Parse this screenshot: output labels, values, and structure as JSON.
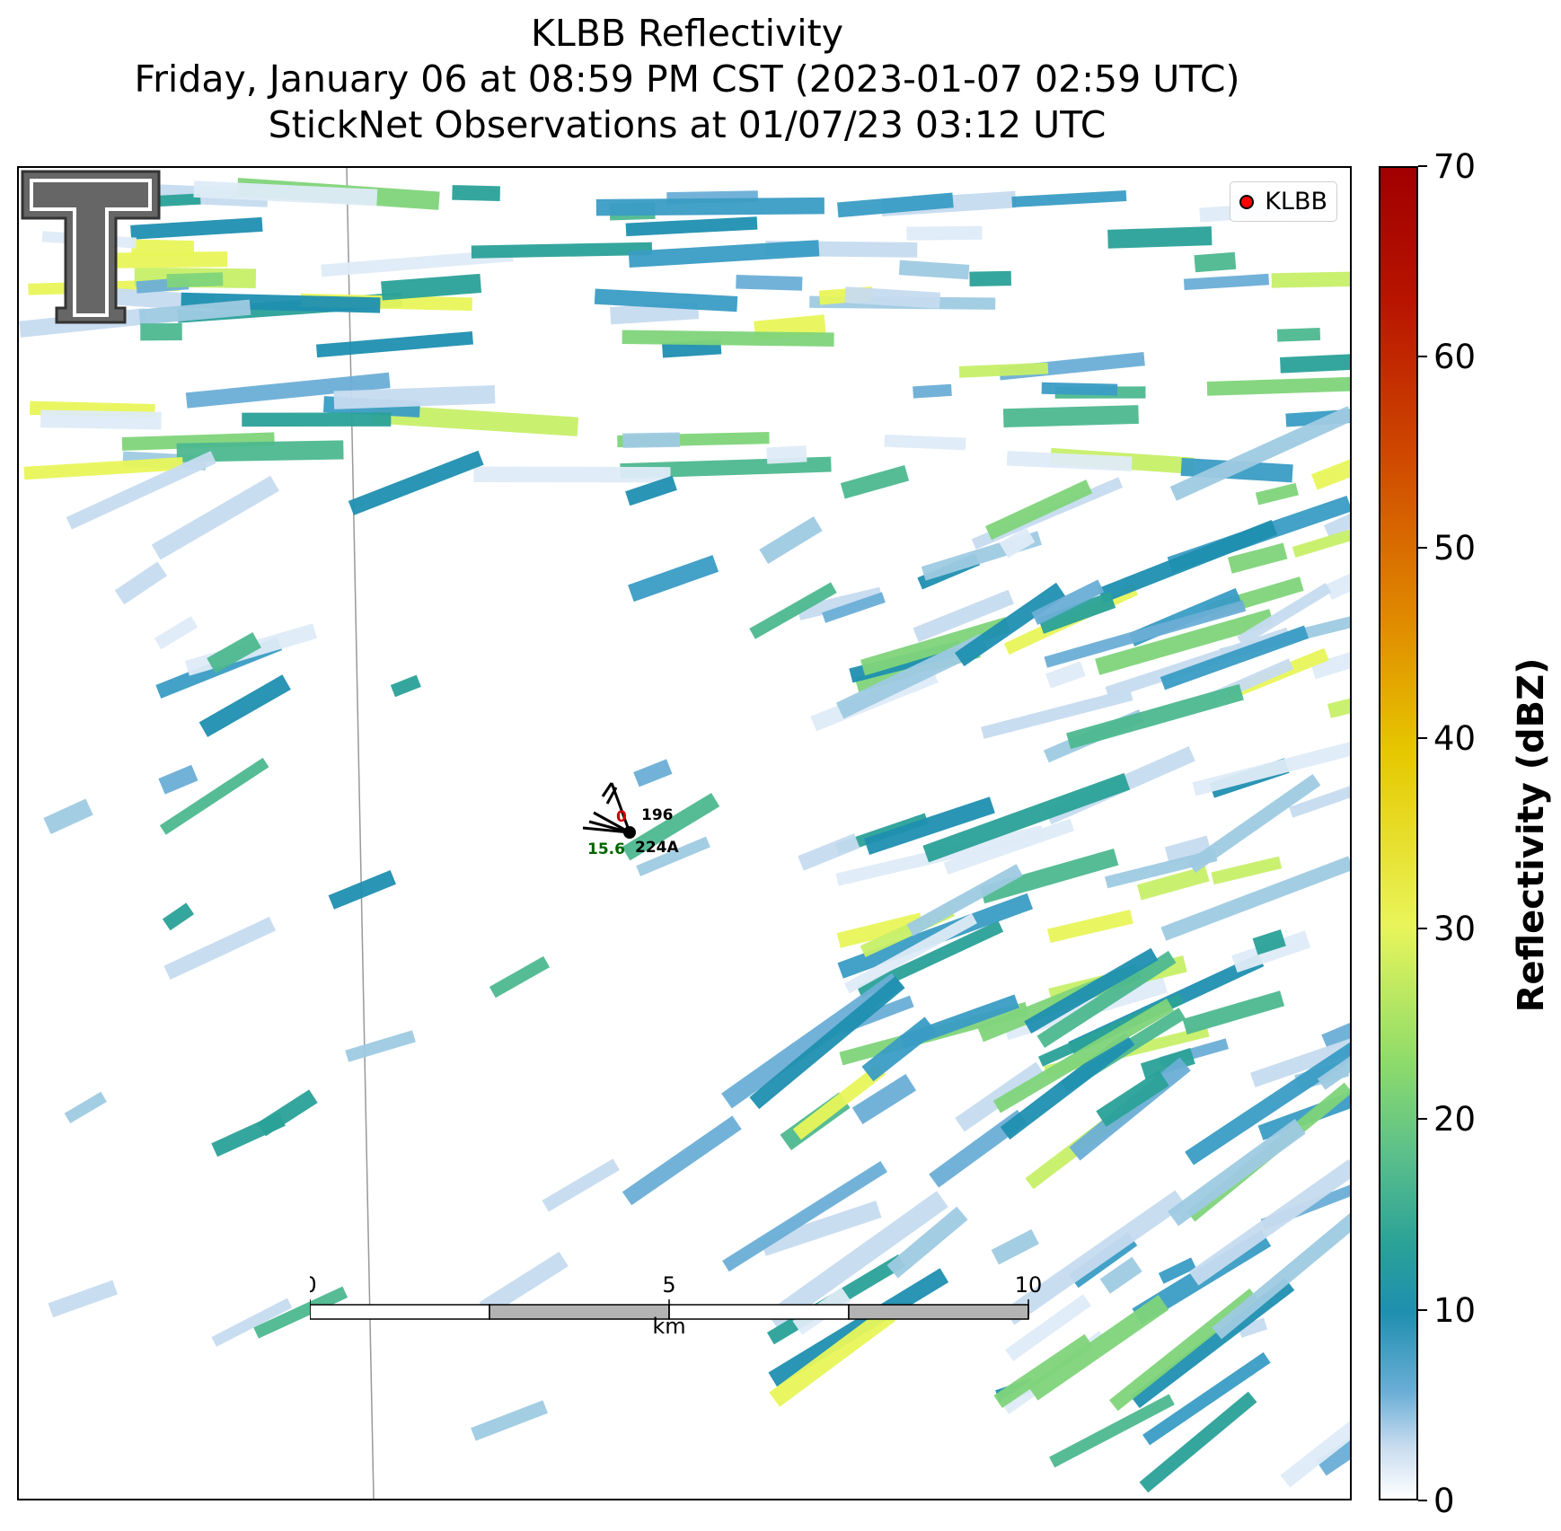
{
  "title": {
    "line1": "KLBB Reflectivity",
    "line2": "Friday, January 06 at 08:59 PM CST (2023-01-07 02:59 UTC)",
    "line3": "StickNet Observations at 01/07/23 03:12 UTC"
  },
  "legend": {
    "label": "KLBB",
    "marker_color": "#ff0000"
  },
  "stations": [
    {
      "id": "196",
      "value": "0",
      "value_color": "#cc0000"
    },
    {
      "id": "224A",
      "value": "15.6",
      "value_color": "#006400"
    }
  ],
  "scalebar": {
    "ticks": [
      "0",
      "5",
      "10"
    ],
    "unit": "km"
  },
  "colorbar": {
    "label": "Reflectivity (dBZ)",
    "ticks": [
      "0",
      "10",
      "20",
      "30",
      "40",
      "50",
      "60",
      "70"
    ],
    "range": [
      0,
      70
    ]
  },
  "logo": {
    "name": "texas-tech-double-t-logo",
    "color": "#555555"
  },
  "colors": {
    "radar_low": "#c6dbef",
    "radar_mid": "#1f8fb0",
    "radar_high": "#8fdc6a",
    "radar_peak": "#e8f55a"
  }
}
